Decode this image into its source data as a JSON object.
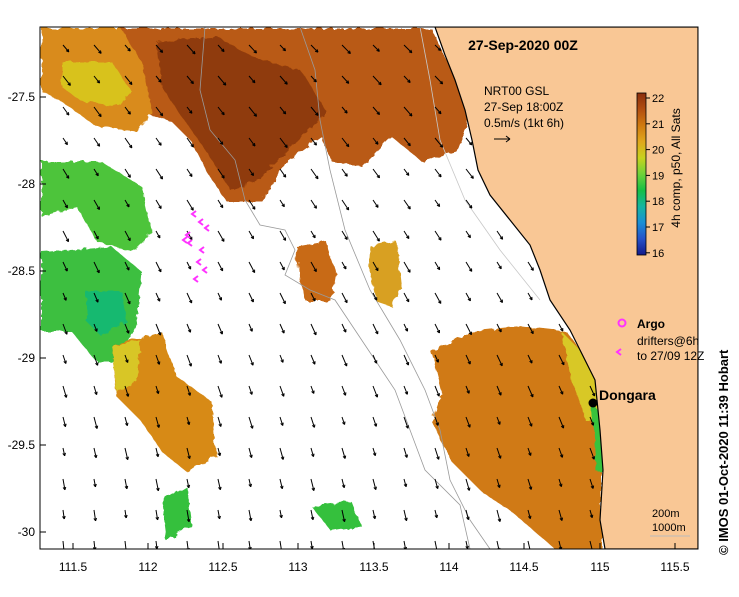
{
  "title": "27-Sep-2020 00Z",
  "winds": {
    "product": "NRT00 GSL",
    "time": "27-Sep 18:00Z",
    "scale": "0.5m/s (1kt 6h)"
  },
  "colorbar": {
    "label": "4h comp, p50, All Sats",
    "ticks": [
      "22",
      "21",
      "20",
      "19",
      "18",
      "17",
      "16"
    ],
    "colors": [
      "#8b2e0c",
      "#b34e10",
      "#d07a10",
      "#e0a71c",
      "#c8d21e",
      "#6fd23a",
      "#17bf45",
      "#16b5a0",
      "#1a8fd6",
      "#2652c9",
      "#131a8a"
    ]
  },
  "legend": {
    "argo": "Argo",
    "drifters_line1": "drifters@6h",
    "drifters_line2": "to 27/09 12Z"
  },
  "place": {
    "name": "Dongara"
  },
  "contours": {
    "line1": "200m",
    "line2": "1000m"
  },
  "x_ticks": [
    "111.5",
    "112",
    "112.5",
    "113",
    "113.5",
    "114",
    "114.5",
    "115",
    "115.5"
  ],
  "y_ticks": [
    "-27.5",
    "-28",
    "-28.5",
    "-29",
    "-29.5",
    "-30"
  ],
  "credit": "© IMOS 01-Oct-2020 11:39 Hobart",
  "colors": {
    "land": "#f9c795",
    "argo": "#ff33ff",
    "drifter": "#ff33ff"
  }
}
